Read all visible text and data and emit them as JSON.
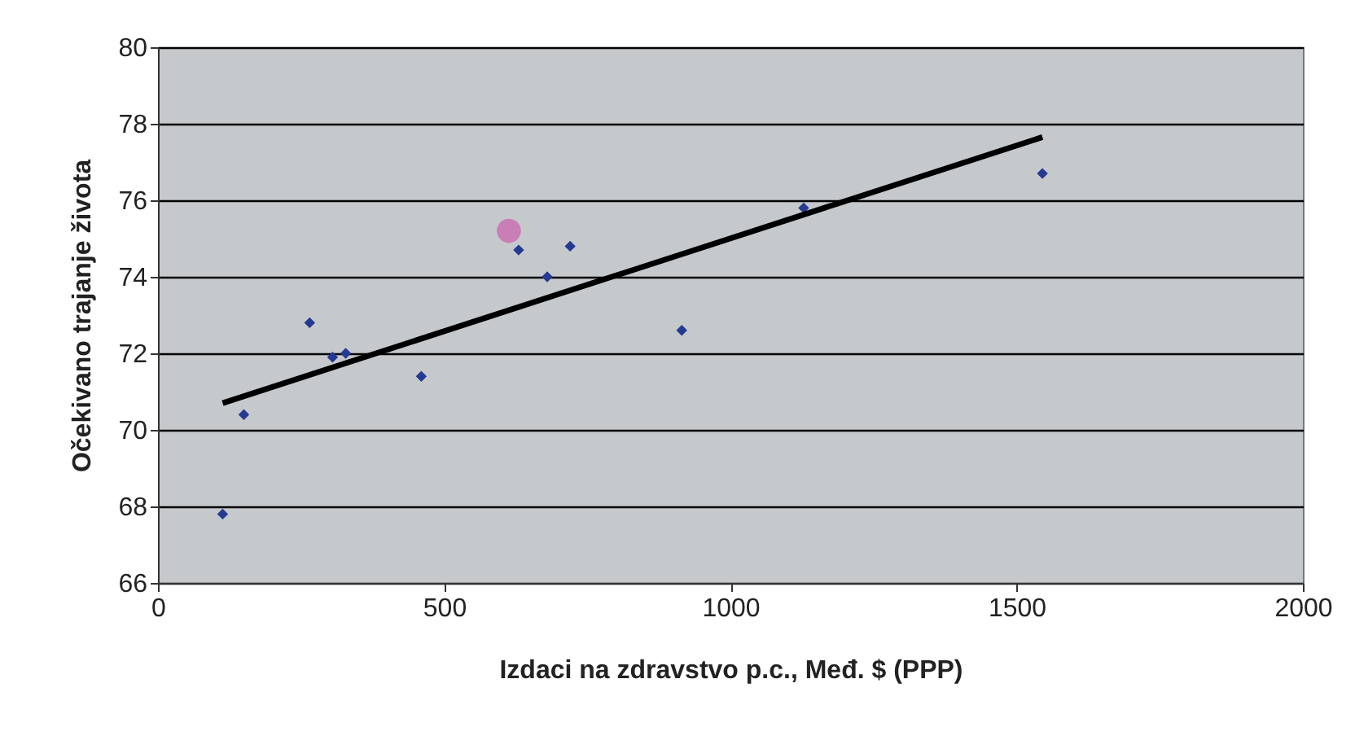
{
  "chart_data": {
    "type": "scatter",
    "xlabel": "Izdaci na zdravstvo p.c., Međ. $ (PPP)",
    "ylabel": "Očekivano trajanje života",
    "xlim": [
      0,
      2000
    ],
    "xticks": [
      0,
      500,
      1000,
      1500,
      2000
    ],
    "ylim": [
      66,
      80
    ],
    "yticks": [
      66,
      68,
      70,
      72,
      74,
      76,
      78,
      80
    ],
    "grid": "y",
    "series": [
      {
        "marker": "diamond",
        "color": "#253a92",
        "x": [
          113,
          150,
          265,
          305,
          328,
          460,
          630,
          680,
          720,
          915,
          1128,
          1545
        ],
        "values": [
          67.8,
          70.4,
          72.8,
          71.9,
          72.0,
          71.4,
          74.7,
          74.0,
          74.8,
          72.6,
          75.8,
          76.7
        ]
      },
      {
        "marker": "circle",
        "color": "#c97fb6",
        "x": [
          613
        ],
        "values": [
          75.2
        ]
      },
      {
        "type": "line",
        "marker": "none",
        "color": "#000000",
        "x": [
          113,
          1545
        ],
        "values": [
          70.7,
          77.65
        ]
      }
    ]
  }
}
